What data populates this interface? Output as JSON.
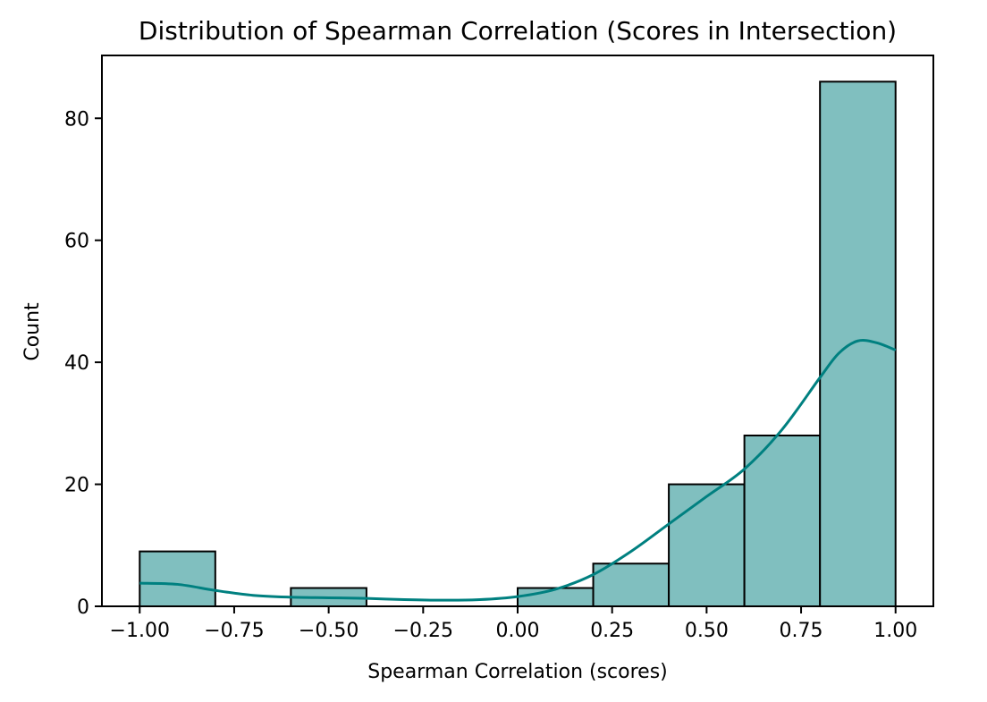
{
  "chart_data": {
    "type": "bar",
    "title": "Distribution of Spearman Correlation (Scores in Intersection)",
    "xlabel": "Spearman Correlation (scores)",
    "ylabel": "Count",
    "xlim": [
      -1.1,
      1.1
    ],
    "ylim": [
      0,
      90.3
    ],
    "bins": [
      {
        "x0": -1.0,
        "x1": -0.8,
        "count": 9
      },
      {
        "x0": -0.8,
        "x1": -0.6,
        "count": 0
      },
      {
        "x0": -0.6,
        "x1": -0.4,
        "count": 3
      },
      {
        "x0": -0.4,
        "x1": -0.2,
        "count": 0
      },
      {
        "x0": -0.2,
        "x1": 0.0,
        "count": 0
      },
      {
        "x0": 0.0,
        "x1": 0.2,
        "count": 3
      },
      {
        "x0": 0.2,
        "x1": 0.4,
        "count": 7
      },
      {
        "x0": 0.4,
        "x1": 0.6,
        "count": 20
      },
      {
        "x0": 0.6,
        "x1": 0.8,
        "count": 28
      },
      {
        "x0": 0.8,
        "x1": 1.0,
        "count": 86
      }
    ],
    "kde": {
      "x": [
        -1.0,
        -0.9,
        -0.8,
        -0.7,
        -0.6,
        -0.5,
        -0.4,
        -0.3,
        -0.2,
        -0.1,
        0.0,
        0.1,
        0.2,
        0.3,
        0.4,
        0.5,
        0.6,
        0.7,
        0.8,
        0.85,
        0.9,
        0.95,
        1.0
      ],
      "y": [
        3.8,
        3.6,
        2.6,
        1.8,
        1.5,
        1.4,
        1.3,
        1.1,
        1.0,
        1.1,
        1.6,
        2.8,
        5.2,
        9.0,
        13.5,
        18.0,
        22.5,
        29.0,
        37.5,
        41.5,
        43.5,
        43.2,
        42.0
      ]
    },
    "x_ticks": [
      -1.0,
      -0.75,
      -0.5,
      -0.25,
      0.0,
      0.25,
      0.5,
      0.75,
      1.0
    ],
    "x_tick_labels": [
      "−1.00",
      "−0.75",
      "−0.50",
      "−0.25",
      "0.00",
      "0.25",
      "0.50",
      "0.75",
      "1.00"
    ],
    "y_ticks": [
      0,
      20,
      40,
      60,
      80
    ],
    "y_tick_labels": [
      "0",
      "20",
      "40",
      "60",
      "80"
    ],
    "colors": {
      "bar_fill": "#80bfbf",
      "bar_edge": "#000000",
      "kde_line": "#008080"
    },
    "grid": false
  }
}
